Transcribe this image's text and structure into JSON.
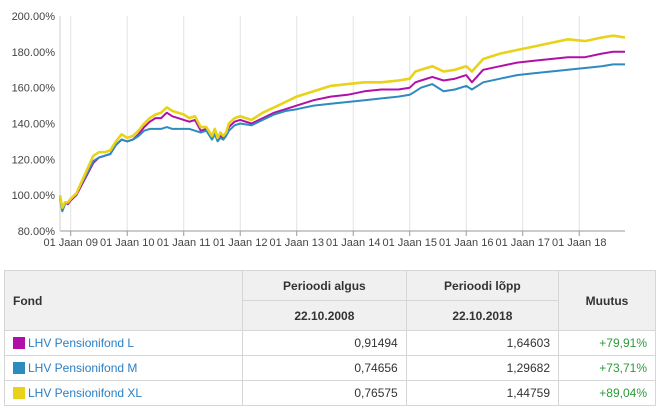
{
  "chart_data": {
    "type": "line",
    "x_tick_labels": [
      "01 Jaan 09",
      "01 Jaan 10",
      "01 Jaan 11",
      "01 Jaan 12",
      "01 Jaan 13",
      "01 Jaan 14",
      "01 Jaan 15",
      "01 Jaan 16",
      "01 Jaan 17",
      "01 Jaan 18"
    ],
    "x_ticks": [
      2009,
      2010,
      2011,
      2012,
      2013,
      2014,
      2015,
      2016,
      2017,
      2018
    ],
    "y_tick_labels": [
      "80.00%",
      "100.00%",
      "120.00%",
      "140.00%",
      "160.00%",
      "180.00%",
      "200.00%"
    ],
    "ylim": [
      80,
      200
    ],
    "xlim": [
      2008.81,
      2018.81
    ],
    "grid": "vertical",
    "series": [
      {
        "name": "LHV Pensionifond L",
        "color": "#b010a8",
        "x": [
          2008.81,
          2008.85,
          2008.9,
          2008.95,
          2009.0,
          2009.1,
          2009.2,
          2009.3,
          2009.4,
          2009.5,
          2009.6,
          2009.7,
          2009.8,
          2009.9,
          2010.0,
          2010.1,
          2010.2,
          2010.3,
          2010.4,
          2010.5,
          2010.6,
          2010.7,
          2010.8,
          2010.9,
          2011.0,
          2011.1,
          2011.2,
          2011.3,
          2011.4,
          2011.5,
          2011.55,
          2011.6,
          2011.65,
          2011.7,
          2011.75,
          2011.8,
          2011.9,
          2012.0,
          2012.2,
          2012.4,
          2012.6,
          2012.8,
          2013.0,
          2013.3,
          2013.6,
          2013.9,
          2014.2,
          2014.5,
          2014.8,
          2015.0,
          2015.1,
          2015.2,
          2015.4,
          2015.6,
          2015.8,
          2016.0,
          2016.1,
          2016.3,
          2016.6,
          2016.9,
          2017.2,
          2017.5,
          2017.8,
          2018.1,
          2018.4,
          2018.6,
          2018.81
        ],
        "y": [
          99,
          92,
          96,
          95,
          97,
          100,
          106,
          112,
          118,
          121,
          122,
          123,
          128,
          131,
          130,
          131,
          134,
          138,
          141,
          143,
          143,
          146,
          144,
          143,
          142,
          141,
          142,
          136,
          137,
          132,
          135,
          131,
          133,
          132,
          134,
          138,
          141,
          142,
          140,
          143,
          146,
          148,
          150,
          153,
          155,
          156,
          158,
          159,
          159,
          160,
          163,
          164,
          166,
          164,
          165,
          167,
          163,
          170,
          172,
          174,
          175,
          176,
          177,
          177,
          179,
          180,
          180
        ]
      },
      {
        "name": "LHV Pensionifond M",
        "color": "#2e8bc0",
        "x": [
          2008.81,
          2008.85,
          2008.9,
          2008.95,
          2009.0,
          2009.1,
          2009.2,
          2009.3,
          2009.4,
          2009.5,
          2009.6,
          2009.7,
          2009.8,
          2009.9,
          2010.0,
          2010.1,
          2010.2,
          2010.3,
          2010.4,
          2010.5,
          2010.6,
          2010.7,
          2010.8,
          2010.9,
          2011.0,
          2011.1,
          2011.2,
          2011.3,
          2011.4,
          2011.5,
          2011.55,
          2011.6,
          2011.65,
          2011.7,
          2011.75,
          2011.8,
          2011.9,
          2012.0,
          2012.2,
          2012.4,
          2012.6,
          2012.8,
          2013.0,
          2013.3,
          2013.6,
          2013.9,
          2014.2,
          2014.5,
          2014.8,
          2015.0,
          2015.1,
          2015.2,
          2015.4,
          2015.6,
          2015.8,
          2016.0,
          2016.1,
          2016.3,
          2016.6,
          2016.9,
          2017.2,
          2017.5,
          2017.8,
          2018.1,
          2018.4,
          2018.6,
          2018.81
        ],
        "y": [
          98,
          91,
          95,
          96,
          98,
          101,
          107,
          113,
          119,
          121,
          122,
          123,
          128,
          131,
          130,
          131,
          133,
          136,
          137,
          137,
          137,
          138,
          137,
          137,
          137,
          137,
          136,
          135,
          136,
          131,
          134,
          130,
          132,
          131,
          133,
          136,
          139,
          140,
          139,
          142,
          145,
          147,
          148,
          150,
          151,
          152,
          153,
          154,
          155,
          156,
          158,
          160,
          162,
          158,
          159,
          161,
          159,
          163,
          165,
          167,
          168,
          169,
          170,
          171,
          172,
          173,
          173
        ]
      },
      {
        "name": "LHV Pensionifond XL",
        "color": "#e8d21a",
        "x": [
          2008.81,
          2008.85,
          2008.9,
          2008.95,
          2009.0,
          2009.1,
          2009.2,
          2009.3,
          2009.4,
          2009.5,
          2009.6,
          2009.7,
          2009.8,
          2009.9,
          2010.0,
          2010.1,
          2010.2,
          2010.3,
          2010.4,
          2010.5,
          2010.6,
          2010.7,
          2010.8,
          2010.9,
          2011.0,
          2011.1,
          2011.2,
          2011.3,
          2011.4,
          2011.5,
          2011.55,
          2011.6,
          2011.65,
          2011.7,
          2011.75,
          2011.8,
          2011.9,
          2012.0,
          2012.2,
          2012.4,
          2012.6,
          2012.8,
          2013.0,
          2013.3,
          2013.6,
          2013.9,
          2014.2,
          2014.5,
          2014.8,
          2015.0,
          2015.1,
          2015.2,
          2015.4,
          2015.6,
          2015.8,
          2016.0,
          2016.1,
          2016.3,
          2016.6,
          2016.9,
          2017.2,
          2017.5,
          2017.8,
          2018.1,
          2018.4,
          2018.6,
          2018.81
        ],
        "y": [
          100,
          93,
          96,
          96,
          98,
          101,
          108,
          115,
          122,
          124,
          124,
          125,
          130,
          134,
          132,
          133,
          136,
          140,
          143,
          145,
          146,
          149,
          147,
          146,
          145,
          143,
          144,
          138,
          138,
          133,
          137,
          132,
          135,
          133,
          135,
          140,
          143,
          144,
          142,
          146,
          149,
          152,
          155,
          158,
          161,
          162,
          163,
          163,
          164,
          165,
          169,
          170,
          172,
          169,
          170,
          172,
          169,
          176,
          179,
          181,
          183,
          185,
          187,
          186,
          188,
          189,
          188
        ]
      }
    ]
  },
  "table": {
    "header": {
      "fond": "Fond",
      "start": "Perioodi algus",
      "end": "Perioodi lõpp",
      "change": "Muutus",
      "start_date": "22.10.2008",
      "end_date": "22.10.2018"
    },
    "rows": [
      {
        "color": "#b010a8",
        "name": "LHV Pensionifond L",
        "start": "0,91494",
        "end": "1,64603",
        "change": "+79,91%"
      },
      {
        "color": "#2e8bc0",
        "name": "LHV Pensionifond M",
        "start": "0,74656",
        "end": "1,29682",
        "change": "+73,71%"
      },
      {
        "color": "#e8d21a",
        "name": "LHV Pensionifond XL",
        "start": "0,76575",
        "end": "1,44759",
        "change": "+89,04%"
      }
    ]
  }
}
